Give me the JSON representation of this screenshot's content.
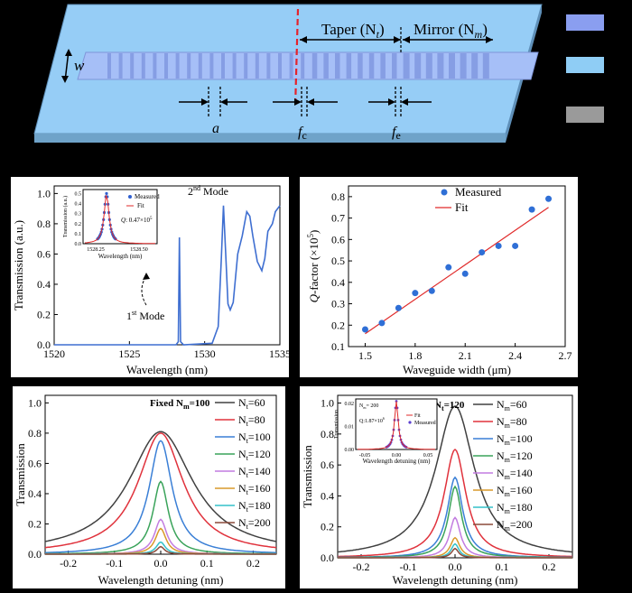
{
  "schematic": {
    "taper_label": "Taper (N",
    "taper_sub": "t",
    "mirror_label": "Mirror (N",
    "mirror_sub": "m",
    "w_label": "w",
    "a_label": "a",
    "fc_label": "f",
    "fc_sub": "c",
    "fe_label": "f",
    "fe_sub": "e",
    "legend_colors": [
      "#8a9ef0",
      "#8fcdf5",
      "#9a9a9a"
    ]
  },
  "chart_data": [
    {
      "id": "b",
      "type": "line",
      "xlabel": "Wavelength (nm)",
      "ylabel": "Transmission (a.u.)",
      "xlim": [
        1520,
        1535
      ],
      "ylim": [
        0,
        1.05
      ],
      "xticks": [
        1520,
        1525,
        1530,
        1535
      ],
      "yticks": [
        0.0,
        0.2,
        0.4,
        0.6,
        0.8,
        1.0
      ],
      "series_color": "#3f6fd1",
      "x": [
        1520,
        1528.1,
        1528.25,
        1528.32,
        1528.4,
        1528.6,
        1530.5,
        1530.9,
        1531.1,
        1531.25,
        1531.4,
        1531.55,
        1531.7,
        1531.9,
        1532.2,
        1532.5,
        1532.8,
        1533.0,
        1533.2,
        1533.5,
        1533.8,
        1534.0,
        1534.2,
        1534.5,
        1534.7,
        1535
      ],
      "y": [
        0.0,
        0.0,
        0.02,
        0.71,
        0.02,
        0.0,
        0.01,
        0.12,
        0.55,
        0.92,
        0.6,
        0.27,
        0.23,
        0.28,
        0.6,
        0.72,
        0.88,
        0.85,
        0.72,
        0.55,
        0.49,
        0.57,
        0.75,
        0.8,
        0.88,
        0.92
      ],
      "annotations": {
        "mode2": "2",
        "mode2_sup": "nd",
        "mode2_rest": " Mode",
        "mode1": "1",
        "mode1_sup": "st",
        "mode1_rest": " Mode"
      },
      "inset": {
        "xlabel": "Wavelength (nm)",
        "ylabel": "Transmission (a.u.)",
        "xticks": [
          "1528.25",
          "1528.50"
        ],
        "yticks": [
          "0.0",
          "0.1",
          "0.2",
          "0.3",
          "0.4",
          "0.5"
        ],
        "legend": [
          "Measured",
          "Fit"
        ],
        "q_label": "Q",
        "q_value": ": 0.47×10",
        "q_exp": "5"
      }
    },
    {
      "id": "c",
      "type": "scatter",
      "xlabel": "Waveguide width (μm)",
      "ylabel": "Q-factor (×10",
      "ylabel_exp": "5",
      "ylabel_tail": ")",
      "xlim": [
        1.4,
        2.7
      ],
      "ylim": [
        0.1,
        0.85
      ],
      "xticks": [
        1.5,
        1.8,
        2.1,
        2.4,
        2.7
      ],
      "yticks": [
        0.1,
        0.2,
        0.3,
        0.4,
        0.5,
        0.6,
        0.7,
        0.8
      ],
      "series": [
        {
          "name": "Measured",
          "x": [
            1.5,
            1.6,
            1.7,
            1.8,
            1.9,
            2.0,
            2.1,
            2.2,
            2.3,
            2.4,
            2.5,
            2.6
          ],
          "y": [
            0.18,
            0.21,
            0.28,
            0.35,
            0.36,
            0.47,
            0.44,
            0.54,
            0.57,
            0.57,
            0.74,
            0.79
          ]
        },
        {
          "name": "Fit",
          "x": [
            1.5,
            2.6
          ],
          "y": [
            0.16,
            0.75
          ]
        }
      ]
    },
    {
      "id": "d",
      "type": "line",
      "xlabel": "Wavelength detuning (nm)",
      "ylabel": "Transmission",
      "title": "Fixed N",
      "title_sub": "m",
      "title_tail": "=100",
      "xlim": [
        -0.25,
        0.25
      ],
      "ylim": [
        0,
        1.05
      ],
      "xticks": [
        -0.2,
        -0.1,
        0.0,
        0.1,
        0.2
      ],
      "yticks": [
        0.0,
        0.2,
        0.4,
        0.6,
        0.8,
        1.0
      ],
      "legend_prefix": "N",
      "legend_sub": "t",
      "series": [
        {
          "name": "=60",
          "color": "#404040",
          "peak": 0.81,
          "width": 0.085
        },
        {
          "name": "=80",
          "color": "#e0323c",
          "peak": 0.8,
          "width": 0.06
        },
        {
          "name": "=100",
          "color": "#3a7fd6",
          "peak": 0.75,
          "width": 0.03
        },
        {
          "name": "=120",
          "color": "#3aa35a",
          "peak": 0.48,
          "width": 0.02
        },
        {
          "name": "=140",
          "color": "#c27ce0",
          "peak": 0.23,
          "width": 0.016
        },
        {
          "name": "=160",
          "color": "#d99a2b",
          "peak": 0.17,
          "width": 0.014
        },
        {
          "name": "=180",
          "color": "#34c1c9",
          "peak": 0.08,
          "width": 0.012
        },
        {
          "name": "=200",
          "color": "#8b4a3a",
          "peak": 0.05,
          "width": 0.01
        }
      ]
    },
    {
      "id": "e",
      "type": "line",
      "xlabel": "Wavelength detuning (nm)",
      "ylabel": "Transmission",
      "title": "Fixed N",
      "title_sub": "t",
      "title_tail": "=120",
      "xlim": [
        -0.25,
        0.25
      ],
      "ylim": [
        0,
        1.05
      ],
      "xticks": [
        -0.2,
        -0.1,
        0.0,
        0.1,
        0.2
      ],
      "yticks": [
        0.0,
        0.2,
        0.4,
        0.6,
        0.8,
        1.0
      ],
      "legend_prefix": "N",
      "legend_sub": "m",
      "series": [
        {
          "name": "=60",
          "color": "#404040",
          "peak": 0.98,
          "width": 0.05
        },
        {
          "name": "=80",
          "color": "#e0323c",
          "peak": 0.7,
          "width": 0.028
        },
        {
          "name": "=100",
          "color": "#3a7fd6",
          "peak": 0.52,
          "width": 0.02
        },
        {
          "name": "=120",
          "color": "#3aa35a",
          "peak": 0.46,
          "width": 0.017
        },
        {
          "name": "=140",
          "color": "#c27ce0",
          "peak": 0.26,
          "width": 0.014
        },
        {
          "name": "=160",
          "color": "#d99a2b",
          "peak": 0.13,
          "width": 0.012
        },
        {
          "name": "=180",
          "color": "#34c1c9",
          "peak": 0.09,
          "width": 0.01
        },
        {
          "name": "=200",
          "color": "#8b4a3a",
          "peak": 0.06,
          "width": 0.009
        }
      ],
      "inset": {
        "xlabel": "Wavelength detuning (nm)",
        "ylabel": "Transmission",
        "xticks": [
          "-0.05",
          "0.00",
          "0.05"
        ],
        "yticks": [
          "0.00",
          "0.01",
          "0.02"
        ],
        "label": "N",
        "label_sub": "m",
        "label_tail": "= 200",
        "legend": [
          "Fit",
          "Measured"
        ],
        "q_value": "Q:1.87×10",
        "q_exp": "6"
      }
    }
  ]
}
